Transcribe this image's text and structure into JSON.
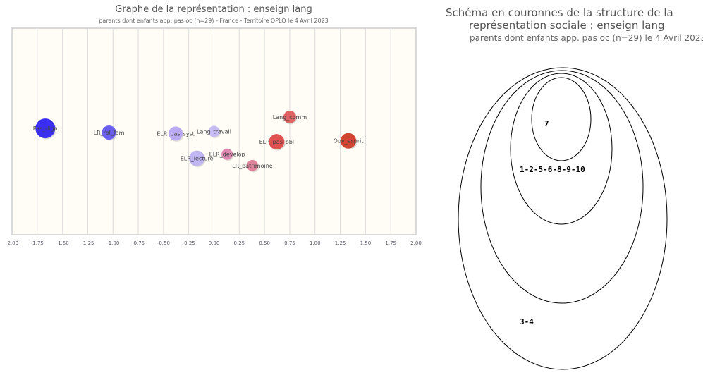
{
  "chart_data": {
    "type": "scatter",
    "title": "Graphe de la représentation : enseign lang",
    "subtitle": "parents dont enfants app. pas oc (n=29) - France - Territoire OPLO le 4 Avril 2023",
    "xlim": [
      -2,
      2
    ],
    "ylim": [
      -1,
      1
    ],
    "x_ticks": [
      "-2.00",
      "-1.75",
      "-1.50",
      "-1.25",
      "-1.00",
      "-0.75",
      "-0.50",
      "-0.25",
      "0.00",
      "0.25",
      "0.50",
      "0.75",
      "1.00",
      "1.25",
      "1.50",
      "1.75",
      "2.00"
    ],
    "grid": "vertical",
    "points": [
      {
        "label": "Pas_dign",
        "x": -1.67,
        "y": 0.03,
        "size": 14,
        "color": "#3a2ff0"
      },
      {
        "label": "LR_rol_fam",
        "x": -1.04,
        "y": -0.01,
        "size": 10,
        "color": "#6a5ff0"
      },
      {
        "label": "ELR_pas_syst",
        "x": -0.38,
        "y": -0.02,
        "size": 10,
        "color": "#b9a9f2"
      },
      {
        "label": "Lang_travail",
        "x": 0.0,
        "y": 0.0,
        "size": 8,
        "color": "#c6bcf2"
      },
      {
        "label": "ELR_lecture",
        "x": -0.17,
        "y": -0.26,
        "size": 11,
        "color": "#c0b6f2"
      },
      {
        "label": "ELR_develop",
        "x": 0.13,
        "y": -0.22,
        "size": 8,
        "color": "#e08ab2"
      },
      {
        "label": "LR_patrimoine",
        "x": 0.38,
        "y": -0.33,
        "size": 8,
        "color": "#e2839c"
      },
      {
        "label": "Lang_comm",
        "x": 0.75,
        "y": 0.14,
        "size": 9,
        "color": "#e06464"
      },
      {
        "label": "ELR_pas_obl",
        "x": 0.62,
        "y": -0.1,
        "size": 11,
        "color": "#e05252"
      },
      {
        "label": "Ouv_esprit",
        "x": 1.33,
        "y": -0.09,
        "size": 11,
        "color": "#d04430"
      }
    ]
  },
  "rings": {
    "title_line1": "Schéma en couronnes de la structure de la",
    "title_line2": "représentation sociale : enseign lang",
    "subtitle": "parents dont enfants app. pas oc (n=29) le 4 Avril 2023",
    "labels": [
      "7",
      "1-2-5-6-8-9-10",
      "3-4"
    ]
  }
}
